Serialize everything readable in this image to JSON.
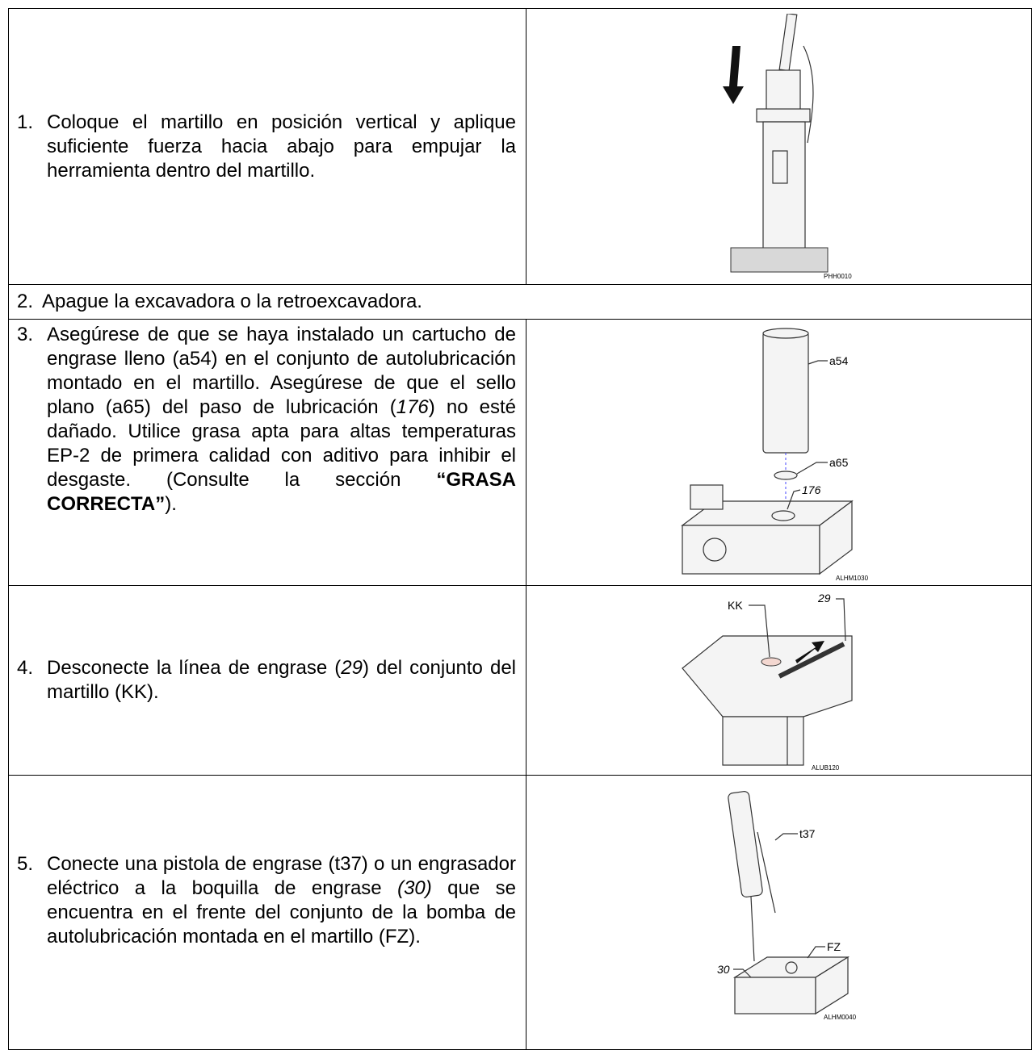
{
  "steps": [
    {
      "number": "1.",
      "text": [
        {
          "text": "Coloque el martillo en posición vertical y aplique suficiente fuerza hacia abajo para empujar la herramienta dentro del martillo."
        }
      ],
      "figure": {
        "code": "PHH0010"
      }
    },
    {
      "number": "2.",
      "text": [
        {
          "text": "Apague la excavadora o la retroexcavadora."
        }
      ]
    },
    {
      "number": "3.",
      "text": [
        {
          "text": "Asegúrese de que se haya instalado un cartucho de engrase lleno (a54) en el conjunto de autolubricación montado en el martillo. Asegúrese de que el sello plano (a65) del paso de lubricación ("
        },
        {
          "text": "176",
          "italic": true
        },
        {
          "text": ") no esté dañado. Utilice grasa apta para altas temperaturas EP-2 de primera calidad con aditivo para inhibir el desgaste. (Consulte la sección "
        },
        {
          "text": "“GRASA CORRECTA”",
          "bold": true
        },
        {
          "text": ")."
        }
      ],
      "figure": {
        "code": "ALHM1030",
        "labels": [
          "a54",
          "a65",
          "176"
        ]
      }
    },
    {
      "number": "4.",
      "text": [
        {
          "text": "Desconecte la línea de engrase ("
        },
        {
          "text": "29",
          "italic": true
        },
        {
          "text": ") del conjunto del martillo (KK)."
        }
      ],
      "figure": {
        "code": "ALUB120",
        "labels": [
          "KK",
          "29"
        ]
      }
    },
    {
      "number": "5.",
      "text": [
        {
          "text": "Conecte una pistola de engrase (t37) o un engrasador eléctrico a la boquilla de engrase "
        },
        {
          "text": "(30)",
          "italic": true
        },
        {
          "text": " que se encuentra en el frente del conjunto de la bomba de autolubricación montada en el martillo (FZ)."
        }
      ],
      "figure": {
        "code": "ALHM0040",
        "labels": [
          "t37",
          "FZ",
          "30"
        ]
      }
    }
  ]
}
